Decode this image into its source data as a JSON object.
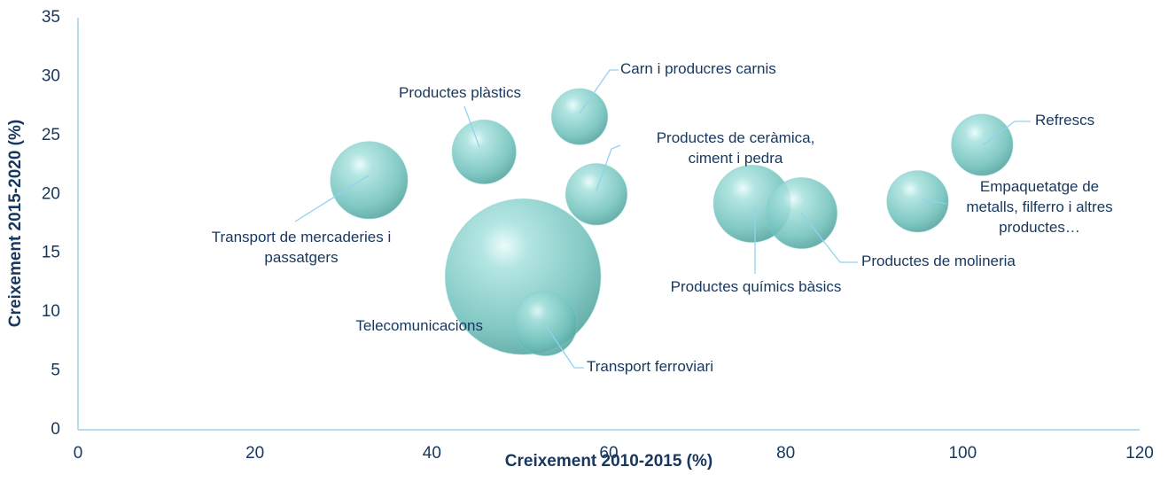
{
  "chart_data": {
    "type": "bubble",
    "xlabel": "Creixement 2010-2015 (%)",
    "ylabel": "Creixement 2015-2020 (%)",
    "xlim": [
      0,
      120
    ],
    "xticks": [
      0,
      20,
      40,
      60,
      80,
      100,
      120
    ],
    "ylim": [
      0,
      35
    ],
    "yticks": [
      0,
      5,
      10,
      15,
      20,
      25,
      30,
      35
    ],
    "series": [
      {
        "color": "#7fcfca",
        "labels": [
          "Transport de mercaderies i passatgers",
          "Productes plàstics",
          "Carn i producres carnis",
          "Productes de ceràmica, ciment i pedra",
          "Telecomunicacions",
          "Transport ferroviari",
          "Productes químics bàsics",
          "Productes de molineria",
          "Empaquetatge de metalls, filferro i altres productes…",
          "Refrescs"
        ],
        "x": [
          32.9,
          45.9,
          56.7,
          58.6,
          50.3,
          52.8,
          76.2,
          81.8,
          94.9,
          102.2
        ],
        "y": [
          21.2,
          23.6,
          26.6,
          20.0,
          13.0,
          9.0,
          19.2,
          18.4,
          19.4,
          24.2
        ],
        "sizes": [
          19,
          13,
          10,
          12,
          77,
          13,
          19,
          16,
          12,
          12
        ]
      }
    ]
  }
}
